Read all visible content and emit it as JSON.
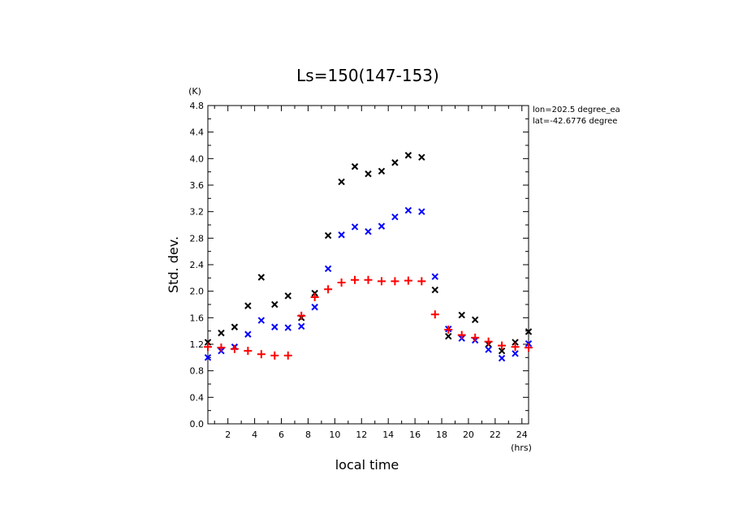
{
  "chart_data": {
    "type": "scatter",
    "title": "Ls=150(147-153)",
    "xlabel": "local time",
    "ylabel": "Std. dev.",
    "x_unit": "(hrs)",
    "y_unit": "(K)",
    "xlim": [
      0.5,
      24.5
    ],
    "ylim": [
      0.0,
      4.8
    ],
    "x_ticks": [
      2,
      4,
      6,
      8,
      10,
      12,
      14,
      16,
      18,
      20,
      22,
      24
    ],
    "y_ticks": [
      "0.0",
      "0.4",
      "0.8",
      "1.2",
      "1.6",
      "2.0",
      "2.4",
      "2.8",
      "3.2",
      "3.6",
      "4.0",
      "4.4",
      "4.8"
    ],
    "annotations": [
      "lon=202.5 degree_ea",
      "lat=-42.6776 degree"
    ],
    "grid": false,
    "series": [
      {
        "marker": "x",
        "color": "#000000",
        "x": [
          0.5,
          1.5,
          2.5,
          3.5,
          4.5,
          5.5,
          6.5,
          7.5,
          8.5,
          9.5,
          10.5,
          11.5,
          12.5,
          13.5,
          14.5,
          15.5,
          16.5,
          17.5,
          18.5,
          19.5,
          20.5,
          21.5,
          22.5,
          23.5,
          24.5
        ],
        "y": [
          1.23,
          1.37,
          1.46,
          1.78,
          2.21,
          1.8,
          1.93,
          1.6,
          1.97,
          2.84,
          3.65,
          3.88,
          3.77,
          3.81,
          3.94,
          4.05,
          4.02,
          2.02,
          1.32,
          1.64,
          1.57,
          1.2,
          1.1,
          1.23,
          1.39
        ]
      },
      {
        "marker": "x",
        "color": "#0000ff",
        "x": [
          0.5,
          1.5,
          2.5,
          3.5,
          4.5,
          5.5,
          6.5,
          7.5,
          8.5,
          9.5,
          10.5,
          11.5,
          12.5,
          13.5,
          14.5,
          15.5,
          16.5,
          17.5,
          18.5,
          19.5,
          20.5,
          21.5,
          22.5,
          23.5,
          24.5
        ],
        "y": [
          1.0,
          1.1,
          1.16,
          1.35,
          1.56,
          1.46,
          1.45,
          1.47,
          1.76,
          2.34,
          2.85,
          2.97,
          2.9,
          2.98,
          3.12,
          3.22,
          3.2,
          2.22,
          1.43,
          1.29,
          1.26,
          1.12,
          0.99,
          1.06,
          1.21
        ]
      },
      {
        "marker": "+",
        "color": "#ff0000",
        "x": [
          0.5,
          1.5,
          2.5,
          3.5,
          4.5,
          5.5,
          6.5,
          7.5,
          8.5,
          9.5,
          10.5,
          11.5,
          12.5,
          13.5,
          14.5,
          15.5,
          16.5,
          17.5,
          18.5,
          19.5,
          20.5,
          21.5,
          22.5,
          23.5,
          24.5
        ],
        "y": [
          1.16,
          1.15,
          1.13,
          1.1,
          1.05,
          1.03,
          1.03,
          1.63,
          1.91,
          2.03,
          2.13,
          2.17,
          2.17,
          2.15,
          2.15,
          2.16,
          2.15,
          1.65,
          1.42,
          1.34,
          1.3,
          1.24,
          1.18,
          1.16,
          1.15
        ]
      }
    ]
  }
}
